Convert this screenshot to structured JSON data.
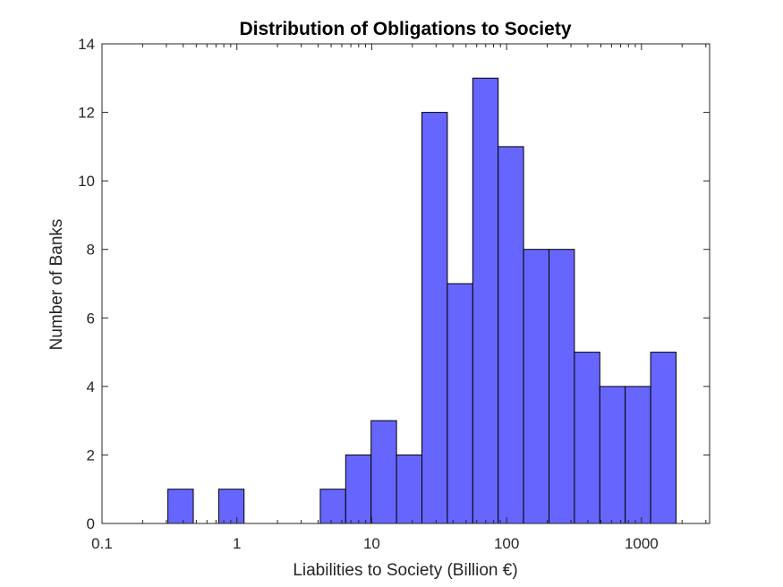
{
  "chart_data": {
    "type": "bar",
    "title": "Distribution of Obligations to Society",
    "xlabel": "Liabilities to Society (Billion €)",
    "ylabel": "Number of Banks",
    "x_scale": "log",
    "xlim": [
      0.1,
      3200
    ],
    "ylim": [
      0,
      14
    ],
    "grid": false,
    "bar_color": "#6666ff",
    "edge_color": "#000000",
    "x_ticks": [
      {
        "value": 0.1,
        "label": "0.1"
      },
      {
        "value": 1,
        "label": "1"
      },
      {
        "value": 10,
        "label": "10"
      },
      {
        "value": 100,
        "label": "100"
      },
      {
        "value": 1000,
        "label": "1000"
      }
    ],
    "y_ticks": [
      {
        "value": 0,
        "label": "0"
      },
      {
        "value": 2,
        "label": "2"
      },
      {
        "value": 4,
        "label": "4"
      },
      {
        "value": 6,
        "label": "6"
      },
      {
        "value": 8,
        "label": "8"
      },
      {
        "value": 10,
        "label": "10"
      },
      {
        "value": 12,
        "label": "12"
      },
      {
        "value": 14,
        "label": "14"
      }
    ],
    "bins": [
      {
        "x0": 0.308,
        "x1": 0.475,
        "count": 1
      },
      {
        "x0": 0.475,
        "x1": 0.733,
        "count": 0
      },
      {
        "x0": 0.733,
        "x1": 1.13,
        "count": 1
      },
      {
        "x0": 1.13,
        "x1": 1.745,
        "count": 0
      },
      {
        "x0": 1.745,
        "x1": 2.693,
        "count": 0
      },
      {
        "x0": 2.693,
        "x1": 4.155,
        "count": 0
      },
      {
        "x0": 4.155,
        "x1": 6.412,
        "count": 1
      },
      {
        "x0": 6.412,
        "x1": 9.894,
        "count": 2
      },
      {
        "x0": 9.894,
        "x1": 15.27,
        "count": 3
      },
      {
        "x0": 15.27,
        "x1": 23.56,
        "count": 2
      },
      {
        "x0": 23.56,
        "x1": 36.36,
        "count": 12
      },
      {
        "x0": 36.36,
        "x1": 56.1,
        "count": 7
      },
      {
        "x0": 56.1,
        "x1": 86.6,
        "count": 13
      },
      {
        "x0": 86.6,
        "x1": 133.6,
        "count": 11
      },
      {
        "x0": 133.6,
        "x1": 206.2,
        "count": 8
      },
      {
        "x0": 206.2,
        "x1": 318.2,
        "count": 8
      },
      {
        "x0": 318.2,
        "x1": 491.1,
        "count": 5
      },
      {
        "x0": 491.1,
        "x1": 757.8,
        "count": 4
      },
      {
        "x0": 757.8,
        "x1": 1169.5,
        "count": 4
      },
      {
        "x0": 1169.5,
        "x1": 1805,
        "count": 5
      }
    ]
  }
}
